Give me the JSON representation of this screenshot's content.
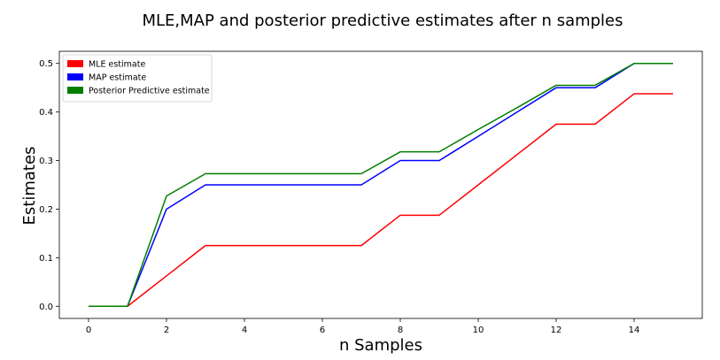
{
  "chart_data": {
    "type": "line",
    "title": "MLE,MAP and posterior predictive estimates after n samples",
    "xlabel": "n Samples",
    "ylabel": "Estimates",
    "xlim": [
      -0.75,
      15.75
    ],
    "ylim": [
      -0.025,
      0.525
    ],
    "xticks": [
      0,
      2,
      4,
      6,
      8,
      10,
      12,
      14
    ],
    "yticks": [
      0.0,
      0.1,
      0.2,
      0.3,
      0.4,
      0.5
    ],
    "grid": false,
    "legend_position": "top-left",
    "x": [
      0,
      1,
      2,
      3,
      4,
      5,
      6,
      7,
      8,
      9,
      10,
      11,
      12,
      13,
      14,
      15
    ],
    "series": [
      {
        "name": "MLE estimate",
        "color": "#ff0000",
        "values": [
          0.0,
          0.0,
          0.0625,
          0.125,
          0.125,
          0.125,
          0.125,
          0.125,
          0.1875,
          0.1875,
          0.25,
          0.3125,
          0.375,
          0.375,
          0.4375,
          0.4375
        ]
      },
      {
        "name": "MAP estimate",
        "color": "#0000ff",
        "values": [
          0.0,
          0.0,
          0.2,
          0.25,
          0.25,
          0.25,
          0.25,
          0.25,
          0.3,
          0.3,
          0.35,
          0.4,
          0.45,
          0.45,
          0.5,
          0.5
        ]
      },
      {
        "name": "Posterior Predictive estimate",
        "color": "#007f00",
        "values": [
          0.0,
          0.0,
          0.227,
          0.273,
          0.273,
          0.273,
          0.273,
          0.273,
          0.318,
          0.318,
          0.364,
          0.409,
          0.455,
          0.455,
          0.5,
          0.5
        ]
      }
    ]
  }
}
